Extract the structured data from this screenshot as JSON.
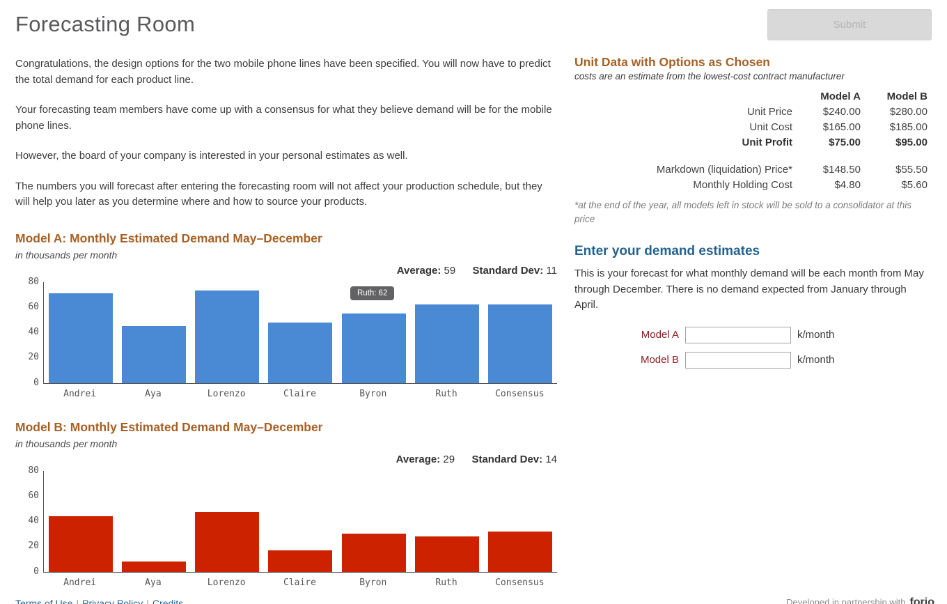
{
  "page": {
    "title": "Forecasting Room",
    "submit_label": "Submit"
  },
  "intro": {
    "p1": "Congratulations, the design options for the two mobile phone lines have been specified. You will now have to predict the total demand for each product line.",
    "p2": "Your forecasting team members have come up with a consensus for what they believe demand will be for the mobile phone lines.",
    "p3": "However, the board of your company is interested in your personal estimates as well.",
    "p4": "The numbers you will forecast after entering the forecasting room will not affect your production schedule, but they will help you later as you determine where and how to source your products."
  },
  "unit_data": {
    "heading": "Unit Data with Options as Chosen",
    "subheading": "costs are an estimate from the lowest-cost contract manufacturer",
    "col_a": "Model A",
    "col_b": "Model B",
    "rows": [
      {
        "label": "Unit Price",
        "a": "$240.00",
        "b": "$280.00"
      },
      {
        "label": "Unit Cost",
        "a": "$165.00",
        "b": "$185.00"
      },
      {
        "label": "Unit Profit",
        "a": "$75.00",
        "b": "$95.00"
      },
      {
        "label": "Markdown (liquidation) Price*",
        "a": "$148.50",
        "b": "$55.50"
      },
      {
        "label": "Monthly Holding Cost",
        "a": "$4.80",
        "b": "$5.60"
      }
    ],
    "footnote": "*at the end of the year, all models left in stock will be sold to a consolidator at this price"
  },
  "estimates": {
    "heading": "Enter your demand estimates",
    "description": "This is your forecast for what monthly demand will be each month from May through December. There is no demand expected from January through April.",
    "fields": [
      {
        "label": "Model A",
        "value": "",
        "unit": "k/month"
      },
      {
        "label": "Model B",
        "value": "",
        "unit": "k/month"
      }
    ]
  },
  "chart_data": [
    {
      "type": "bar",
      "title": "Model A: Monthly Estimated Demand May–December",
      "subtitle": "in thousands per month",
      "average_label": "Average:",
      "average": 59,
      "stddev_label": "Standard Dev:",
      "stddev": 11,
      "categories": [
        "Andrei",
        "Aya",
        "Lorenzo",
        "Claire",
        "Byron",
        "Ruth",
        "Consensus"
      ],
      "values": [
        71,
        45,
        73,
        48,
        55,
        62,
        62
      ],
      "ylim": [
        0,
        80
      ],
      "yticks": [
        0,
        20,
        40,
        60,
        80
      ],
      "bar_color": "#4a89d4",
      "grid": false,
      "legend": "none",
      "tooltip": {
        "text": "Ruth: 62"
      }
    },
    {
      "type": "bar",
      "title": "Model B: Monthly Estimated Demand May–December",
      "subtitle": "in thousands per month",
      "average_label": "Average:",
      "average": 29,
      "stddev_label": "Standard Dev:",
      "stddev": 14,
      "categories": [
        "Andrei",
        "Aya",
        "Lorenzo",
        "Claire",
        "Byron",
        "Ruth",
        "Consensus"
      ],
      "values": [
        44,
        8,
        47,
        17,
        30,
        28,
        32
      ],
      "ylim": [
        0,
        80
      ],
      "yticks": [
        0,
        20,
        40,
        60,
        80
      ],
      "bar_color": "#cc2200",
      "grid": false,
      "legend": "none"
    }
  ],
  "footer": {
    "links": [
      "Terms of Use",
      "Privacy Policy",
      "Credits"
    ],
    "partnership_text": "Developed in partnership with",
    "logo_text": "forio"
  }
}
